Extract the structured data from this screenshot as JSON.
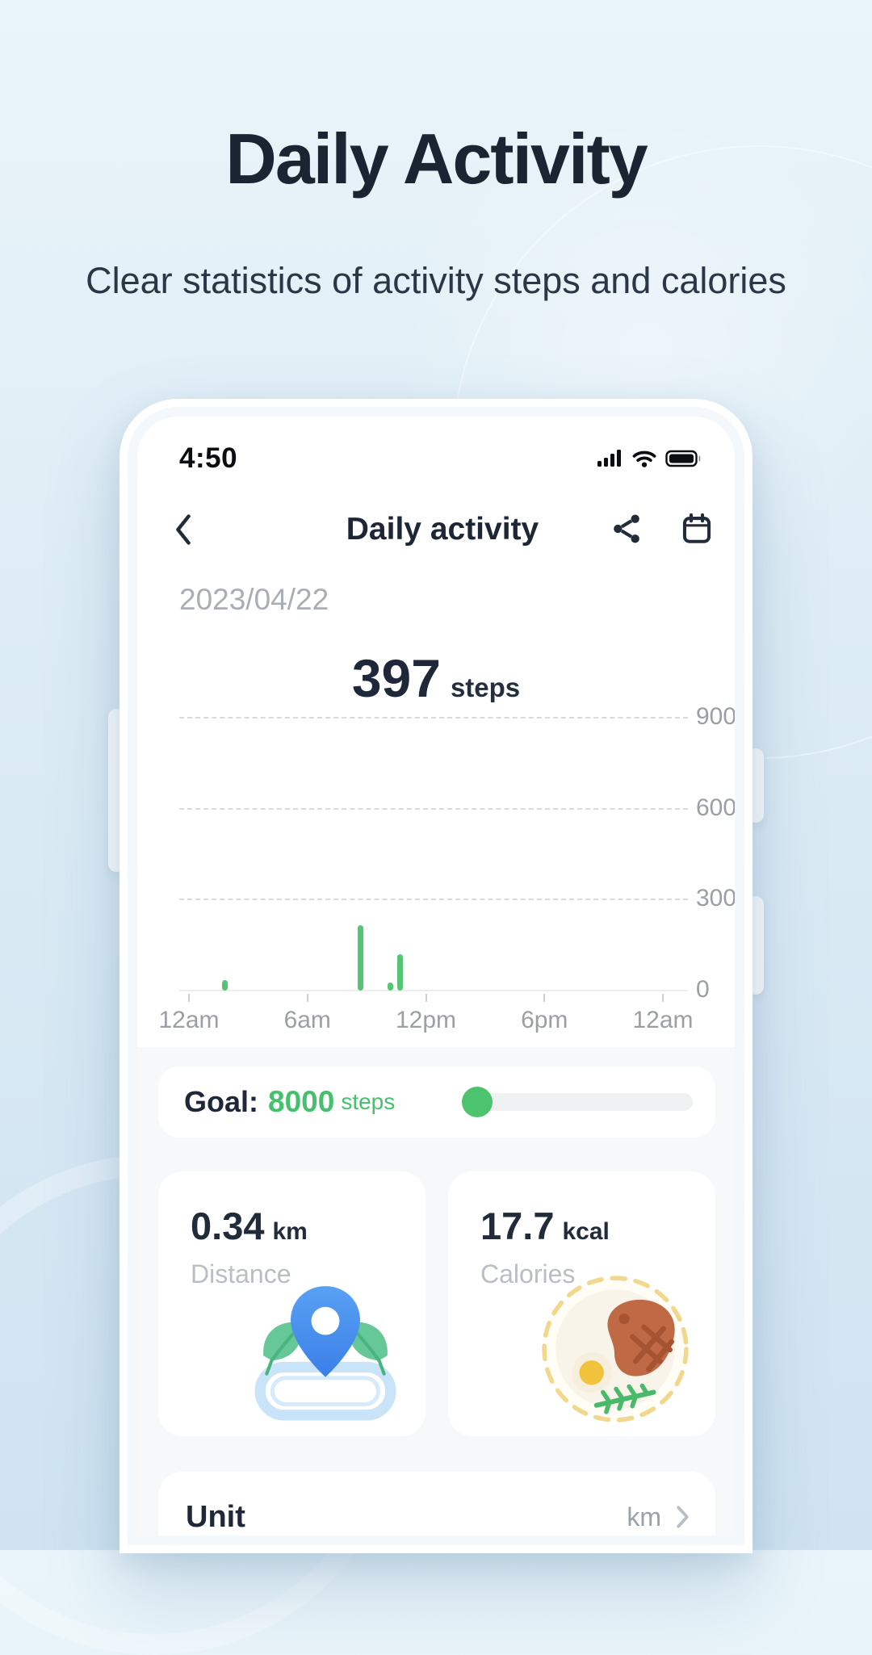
{
  "hero": {
    "title": "Daily Activity",
    "subtitle": "Clear statistics of activity steps and calories"
  },
  "phone": {
    "status_bar": {
      "time": "4:50"
    },
    "nav": {
      "title": "Daily activity"
    },
    "date": "2023/04/22",
    "steps": {
      "value": "397",
      "unit": "steps"
    },
    "goal": {
      "label": "Goal:",
      "value": "8000",
      "unit": "steps",
      "progress_percent": 5
    },
    "stats": [
      {
        "value": "0.34",
        "unit": "km",
        "label": "Distance",
        "icon": "location-pin-track"
      },
      {
        "value": "17.7",
        "unit": "kcal",
        "label": "Calories",
        "icon": "meal-plate"
      }
    ],
    "unit_row": {
      "label": "Unit",
      "value": "km"
    }
  },
  "chart_data": {
    "type": "bar",
    "title": "397 steps",
    "x_axis": {
      "labels": [
        "12am",
        "6am",
        "12pm",
        "6pm",
        "12am"
      ],
      "range_hours": [
        0,
        24
      ]
    },
    "y_axis": {
      "gridlines": [
        900,
        600,
        300,
        0
      ],
      "lim": [
        0,
        900
      ],
      "side": "right",
      "grid_style": "dashed"
    },
    "bars": [
      {
        "hour": 1.8,
        "steps": 35
      },
      {
        "hour": 8.7,
        "steps": 215
      },
      {
        "hour": 10.2,
        "steps": 27
      },
      {
        "hour": 10.7,
        "steps": 120
      }
    ],
    "bar_color": "#55c573",
    "legend": "none"
  },
  "colors": {
    "accent_green": "#46c06c",
    "bar_green": "#55c573",
    "title_navy": "#1b2433",
    "pin_blue": "#4a90ee",
    "section_bg": "#f7f8f9"
  }
}
